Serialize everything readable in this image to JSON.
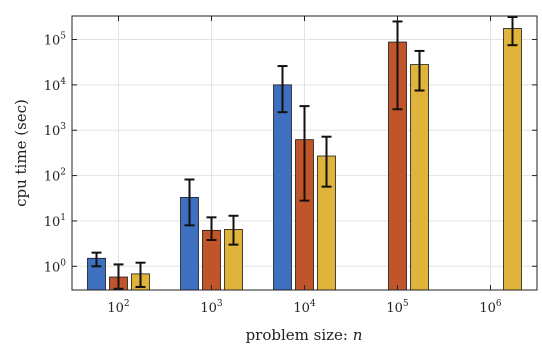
{
  "chart_data": {
    "type": "bar",
    "xlabel": "problem size: ",
    "xlabel_var": "n",
    "ylabel": "cpu time (sec)",
    "yscale": "log",
    "ylim": [
      0.3,
      330000
    ],
    "grid": true,
    "x_ticks": [
      {
        "base": "10",
        "exp": "2"
      },
      {
        "base": "10",
        "exp": "3"
      },
      {
        "base": "10",
        "exp": "4"
      },
      {
        "base": "10",
        "exp": "5"
      },
      {
        "base": "10",
        "exp": "6"
      }
    ],
    "y_ticks": [
      {
        "value": 1,
        "base": "10",
        "exp": "0"
      },
      {
        "value": 10,
        "base": "10",
        "exp": "1"
      },
      {
        "value": 100,
        "base": "10",
        "exp": "2"
      },
      {
        "value": 1000,
        "base": "10",
        "exp": "3"
      },
      {
        "value": 10000,
        "base": "10",
        "exp": "4"
      },
      {
        "value": 100000,
        "base": "10",
        "exp": "5"
      }
    ],
    "categories": [
      "10^2",
      "10^3",
      "10^4",
      "10^5",
      "10^6"
    ],
    "series": [
      {
        "color": "#3f6fbf",
        "values": [
          1.5,
          33,
          10000,
          null,
          null
        ],
        "err_low": [
          1.0,
          8,
          2500,
          null,
          null
        ],
        "err_high": [
          2.0,
          82,
          26000,
          null,
          null
        ]
      },
      {
        "color": "#c1552a",
        "values": [
          0.58,
          6.2,
          620,
          88000,
          null
        ],
        "err_low": [
          0.32,
          3.8,
          28,
          2900,
          null
        ],
        "err_high": [
          1.1,
          12,
          3400,
          250000,
          null
        ]
      },
      {
        "color": "#e0b43a",
        "values": [
          0.68,
          6.5,
          270,
          28000,
          175000
        ],
        "err_low": [
          0.35,
          3.0,
          57,
          7500,
          75000
        ],
        "err_high": [
          1.2,
          13,
          720,
          56000,
          330000
        ]
      }
    ]
  }
}
